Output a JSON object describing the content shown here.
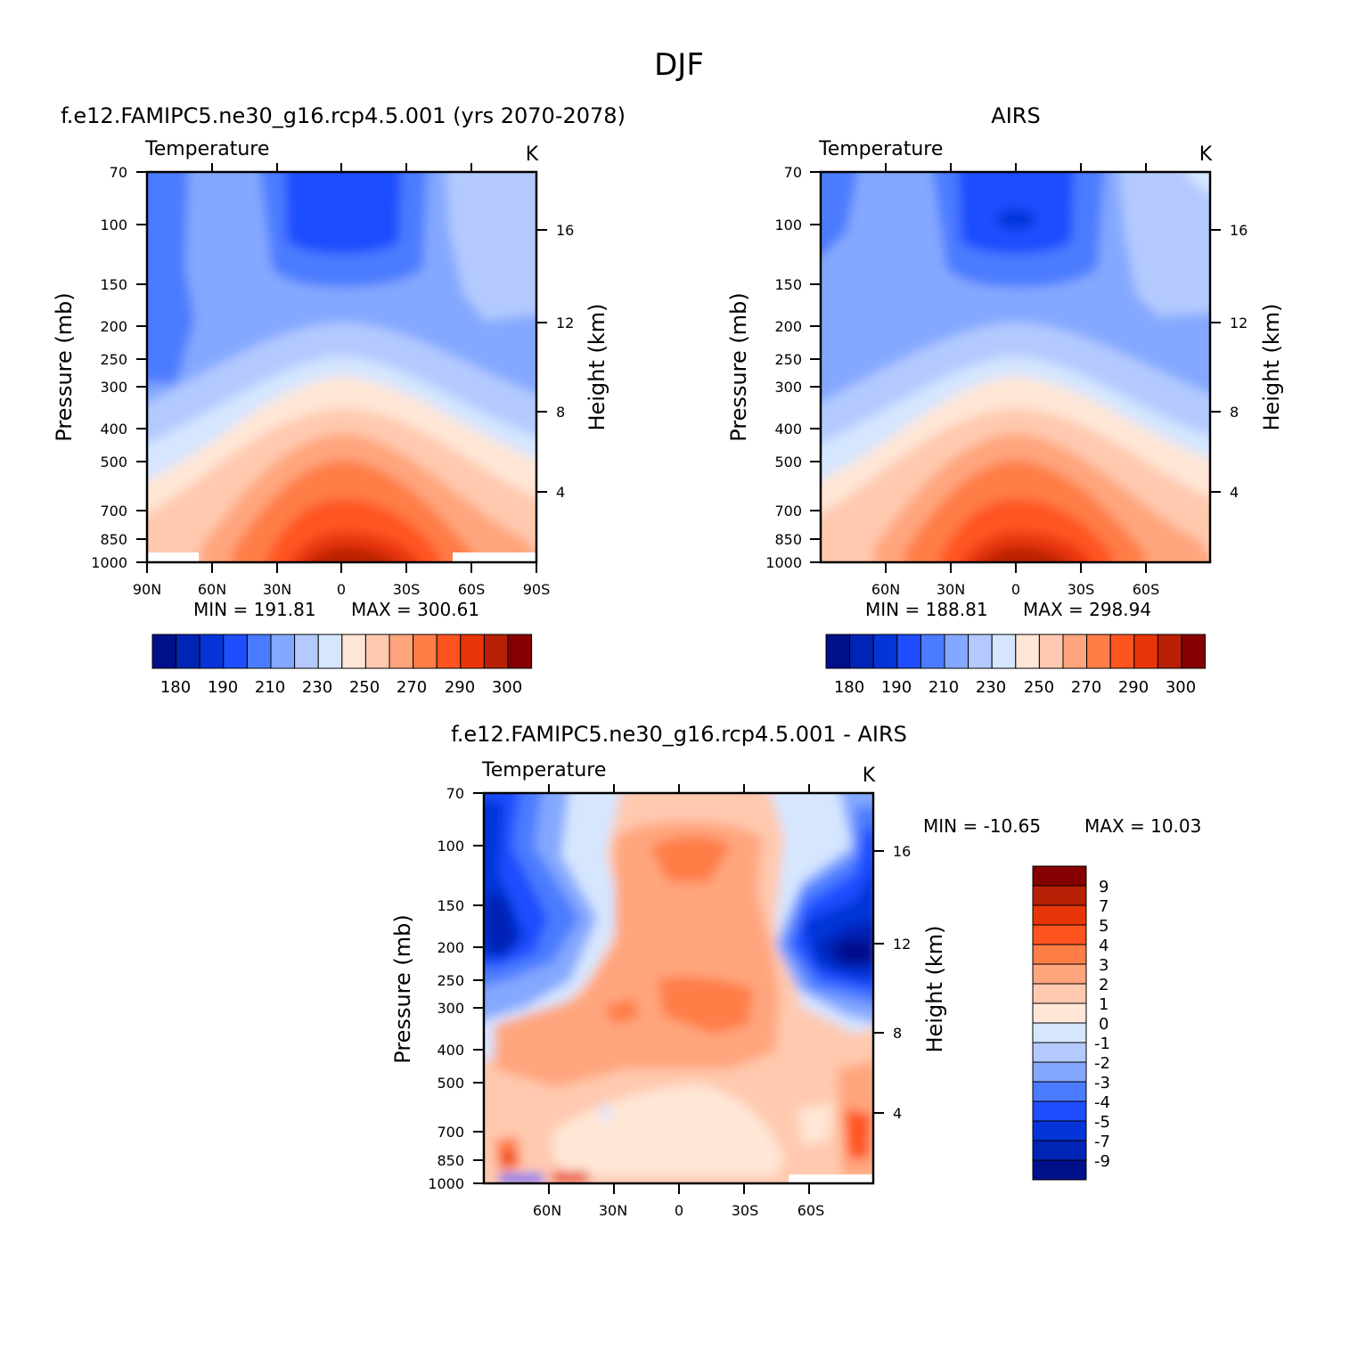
{
  "figure_title": "DJF",
  "chart_data": [
    {
      "type": "heatmap",
      "title": "f.e12.FAMIPC5.ne30_g16.rcp4.5.001 (yrs 2070-2078)",
      "variable": "Temperature",
      "units": "K",
      "xlabel": "",
      "ylabel": "Pressure (mb)",
      "ylabel_right": "Height (km)",
      "x_tick_labels": [
        "90N",
        "60N",
        "30N",
        "0",
        "30S",
        "60S",
        "90S"
      ],
      "y_tick_labels": [
        "70",
        "100",
        "150",
        "200",
        "250",
        "300",
        "400",
        "500",
        "700",
        "850",
        "1000"
      ],
      "y_right_tick_labels": [
        "16",
        "12",
        "8",
        "4"
      ],
      "y_scale": "log",
      "min_text": "MIN = 191.81",
      "max_text": "MAX = 300.61",
      "min": 191.81,
      "max": 300.61,
      "colorbar_labels": [
        "180",
        "190",
        "210",
        "230",
        "250",
        "270",
        "290",
        "300"
      ],
      "colorbar_orientation": "horizontal"
    },
    {
      "type": "heatmap",
      "title": "AIRS",
      "variable": "Temperature",
      "units": "K",
      "xlabel": "",
      "ylabel": "Pressure (mb)",
      "ylabel_right": "Height (km)",
      "x_tick_labels": [
        "60N",
        "30N",
        "0",
        "30S",
        "60S"
      ],
      "y_tick_labels": [
        "70",
        "100",
        "150",
        "200",
        "250",
        "300",
        "400",
        "500",
        "700",
        "850",
        "1000"
      ],
      "y_right_tick_labels": [
        "16",
        "12",
        "8",
        "4"
      ],
      "y_scale": "log",
      "min_text": "MIN = 188.81",
      "max_text": "MAX = 298.94",
      "min": 188.81,
      "max": 298.94,
      "colorbar_labels": [
        "180",
        "190",
        "210",
        "230",
        "250",
        "270",
        "290",
        "300"
      ],
      "colorbar_orientation": "horizontal"
    },
    {
      "type": "heatmap",
      "title": "f.e12.FAMIPC5.ne30_g16.rcp4.5.001 - AIRS",
      "variable": "Temperature",
      "units": "K",
      "xlabel": "",
      "ylabel": "Pressure (mb)",
      "ylabel_right": "Height (km)",
      "x_tick_labels": [
        "60N",
        "30N",
        "0",
        "30S",
        "60S"
      ],
      "y_tick_labels": [
        "70",
        "100",
        "150",
        "200",
        "250",
        "300",
        "400",
        "500",
        "700",
        "850",
        "1000"
      ],
      "y_right_tick_labels": [
        "16",
        "12",
        "8",
        "4"
      ],
      "y_scale": "log",
      "min_text": "MIN = -10.65",
      "max_text": "MAX = 10.03",
      "min": -10.65,
      "max": 10.03,
      "colorbar_labels": [
        "9",
        "7",
        "5",
        "4",
        "3",
        "2",
        "1",
        "0",
        "-1",
        "-2",
        "-3",
        "-4",
        "-5",
        "-7",
        "-9"
      ],
      "colorbar_orientation": "vertical"
    }
  ],
  "colors": {
    "temperature_scale": [
      "#000f8a",
      "#0024b5",
      "#0535d8",
      "#1f4eff",
      "#4b7bff",
      "#84a8ff",
      "#b4caff",
      "#d6e6ff",
      "#ffe6d6",
      "#ffc9af",
      "#ffa57d",
      "#ff7d47",
      "#ff5420",
      "#e83508",
      "#b82005",
      "#850000"
    ],
    "difference_scale": [
      "#850000",
      "#b82005",
      "#e83508",
      "#ff5420",
      "#ff7d47",
      "#ffa57d",
      "#ffc9af",
      "#ffe6d6",
      "#d6e6ff",
      "#b4caff",
      "#84a8ff",
      "#4b7bff",
      "#1f4eff",
      "#0535d8",
      "#0024b5",
      "#000f8a"
    ]
  }
}
